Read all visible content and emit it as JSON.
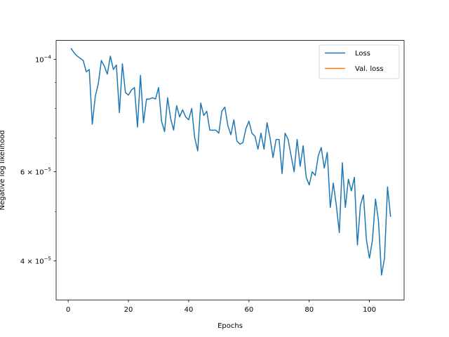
{
  "chart_data": {
    "type": "line",
    "xlabel": "Epochs",
    "ylabel": "Negative log likelihood",
    "yscale": "log",
    "xlim": [
      -4,
      111.5
    ],
    "ylim": [
      3.35e-05,
      0.000109
    ],
    "xticks": [
      0,
      20,
      40,
      60,
      80,
      100
    ],
    "yticks": [
      {
        "value": 0.0001,
        "mantissa": "10",
        "exp": "−4",
        "coef": ""
      },
      {
        "value": 6e-05,
        "mantissa": "10",
        "exp": "−5",
        "coef": "6 × "
      },
      {
        "value": 4e-05,
        "mantissa": "10",
        "exp": "−5",
        "coef": "4 × "
      }
    ],
    "legend_position": "top-right",
    "grid": false,
    "series": [
      {
        "name": "Loss",
        "color": "#1f77b4",
        "x": [
          1,
          2,
          3,
          4,
          5,
          6,
          7,
          8,
          9,
          10,
          11,
          12,
          13,
          14,
          15,
          16,
          17,
          18,
          19,
          20,
          21,
          22,
          23,
          24,
          25,
          26,
          27,
          28,
          29,
          30,
          31,
          32,
          33,
          34,
          35,
          36,
          37,
          38,
          39,
          40,
          41,
          42,
          43,
          44,
          45,
          46,
          47,
          48,
          49,
          50,
          51,
          52,
          53,
          54,
          55,
          56,
          57,
          58,
          59,
          60,
          61,
          62,
          63,
          64,
          65,
          66,
          67,
          68,
          69,
          70,
          71,
          72,
          73,
          74,
          75,
          76,
          77,
          78,
          79,
          80,
          81,
          82,
          83,
          84,
          85,
          86,
          87,
          88,
          89,
          90,
          91,
          92,
          93,
          94,
          95,
          96,
          97,
          98,
          99,
          100,
          101,
          102,
          103,
          104,
          105,
          106,
          107
        ],
        "y": [
          0.000105,
          0.000103,
          0.0001015,
          0.0001005,
          9.95e-05,
          9.45e-05,
          9.55e-05,
          7.45e-05,
          8.45e-05,
          8.95e-05,
          9.95e-05,
          9.7e-05,
          9.35e-05,
          0.0001015,
          9.55e-05,
          9.75e-05,
          7.85e-05,
          9.8e-05,
          8.6e-05,
          8.5e-05,
          8.7e-05,
          8.8e-05,
          7.35e-05,
          9.3e-05,
          7.5e-05,
          8.35e-05,
          8.35e-05,
          8.4e-05,
          8.35e-05,
          8.8e-05,
          7.55e-05,
          7.2e-05,
          8.4e-05,
          7.65e-05,
          7.25e-05,
          8.1e-05,
          7.7e-05,
          7.95e-05,
          7.7e-05,
          7.6e-05,
          8e-05,
          7e-05,
          6.6e-05,
          8.2e-05,
          7.75e-05,
          7.9e-05,
          7.25e-05,
          7.25e-05,
          7.25e-05,
          7.15e-05,
          7.9e-05,
          8.05e-05,
          7.4e-05,
          7.1e-05,
          7.6e-05,
          6.9e-05,
          6.8e-05,
          6.85e-05,
          7.3e-05,
          7.55e-05,
          7.15e-05,
          7.05e-05,
          6.65e-05,
          7.15e-05,
          6.65e-05,
          7.5e-05,
          7e-05,
          6.4e-05,
          6.95e-05,
          6.95e-05,
          5.95e-05,
          7.15e-05,
          6.95e-05,
          6.45e-05,
          6e-05,
          6.95e-05,
          6.15e-05,
          6.75e-05,
          5.85e-05,
          5.65e-05,
          6e-05,
          5.9e-05,
          6.45e-05,
          6.7e-05,
          6.1e-05,
          6.55e-05,
          5.1e-05,
          5.7e-05,
          5.15e-05,
          4.55e-05,
          6.25e-05,
          5.1e-05,
          5.8e-05,
          5.5e-05,
          5.85e-05,
          4.3e-05,
          5.15e-05,
          5.4e-05,
          4.4e-05,
          4.05e-05,
          4.4e-05,
          5.3e-05,
          4.8e-05,
          3.75e-05,
          4.05e-05,
          5.6e-05,
          4.9e-05
        ]
      },
      {
        "name": "Val. loss",
        "color": "#ff7f0e",
        "x": [],
        "y": []
      }
    ]
  }
}
